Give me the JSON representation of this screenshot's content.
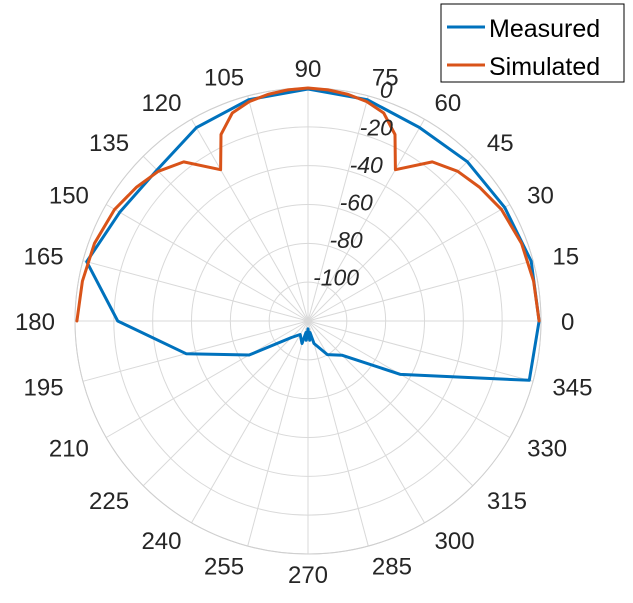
{
  "chart_data": {
    "type": "polar-line",
    "theta_unit": "degrees",
    "theta_ticks": [
      0,
      15,
      30,
      45,
      60,
      75,
      90,
      105,
      120,
      135,
      150,
      165,
      180,
      195,
      210,
      225,
      240,
      255,
      270,
      285,
      300,
      315,
      330,
      345
    ],
    "theta_tick_labels": [
      "0",
      "15",
      "30",
      "45",
      "60",
      "75",
      "90",
      "105",
      "120",
      "135",
      "150",
      "165",
      "180",
      "195",
      "210",
      "225",
      "240",
      "255",
      "270",
      "285",
      "300",
      "315",
      "330",
      "345"
    ],
    "r_ticks": [
      -100,
      -80,
      -60,
      -40,
      -20,
      0
    ],
    "r_tick_labels": [
      "-100",
      "-80",
      "-60",
      "-40",
      "-20",
      "0"
    ],
    "r_tick_angle": 75,
    "rlim": [
      -120,
      0
    ],
    "grid": true,
    "legend_position": "top-right",
    "series": [
      {
        "name": "Measured",
        "color": "#0072BD",
        "theta": [
          0,
          15,
          30,
          45,
          60,
          75,
          90,
          105,
          120,
          135,
          150,
          165,
          180,
          195,
          210,
          225,
          240,
          255,
          260,
          265,
          270,
          275,
          280,
          285,
          300,
          315,
          330,
          345,
          360
        ],
        "r": [
          -1,
          -1,
          -3,
          -4,
          -5,
          -2,
          -0.5,
          -2,
          -5,
          -10,
          -8,
          -2,
          -22,
          -55,
          -85,
          -108,
          -112,
          -108,
          -114,
          -110,
          -116,
          -110,
          -114,
          -108,
          -100,
          -95,
          -65,
          -2,
          -1
        ]
      },
      {
        "name": "Simulated",
        "color": "#D95319",
        "theta": [
          0,
          10,
          20,
          30,
          38,
          45,
          52,
          60,
          65,
          70,
          75,
          80,
          85,
          90,
          95,
          100,
          105,
          110,
          115,
          120,
          128,
          135,
          142,
          150,
          160,
          170,
          180
        ],
        "r": [
          -1,
          -2,
          -3,
          -5,
          -8,
          -11,
          -16,
          -30,
          -14,
          -6,
          -3,
          -1.5,
          -0.5,
          0,
          -0.5,
          -1.5,
          -3,
          -6,
          -14,
          -30,
          -16,
          -11,
          -8,
          -5,
          -3,
          -2,
          -1
        ]
      }
    ]
  }
}
